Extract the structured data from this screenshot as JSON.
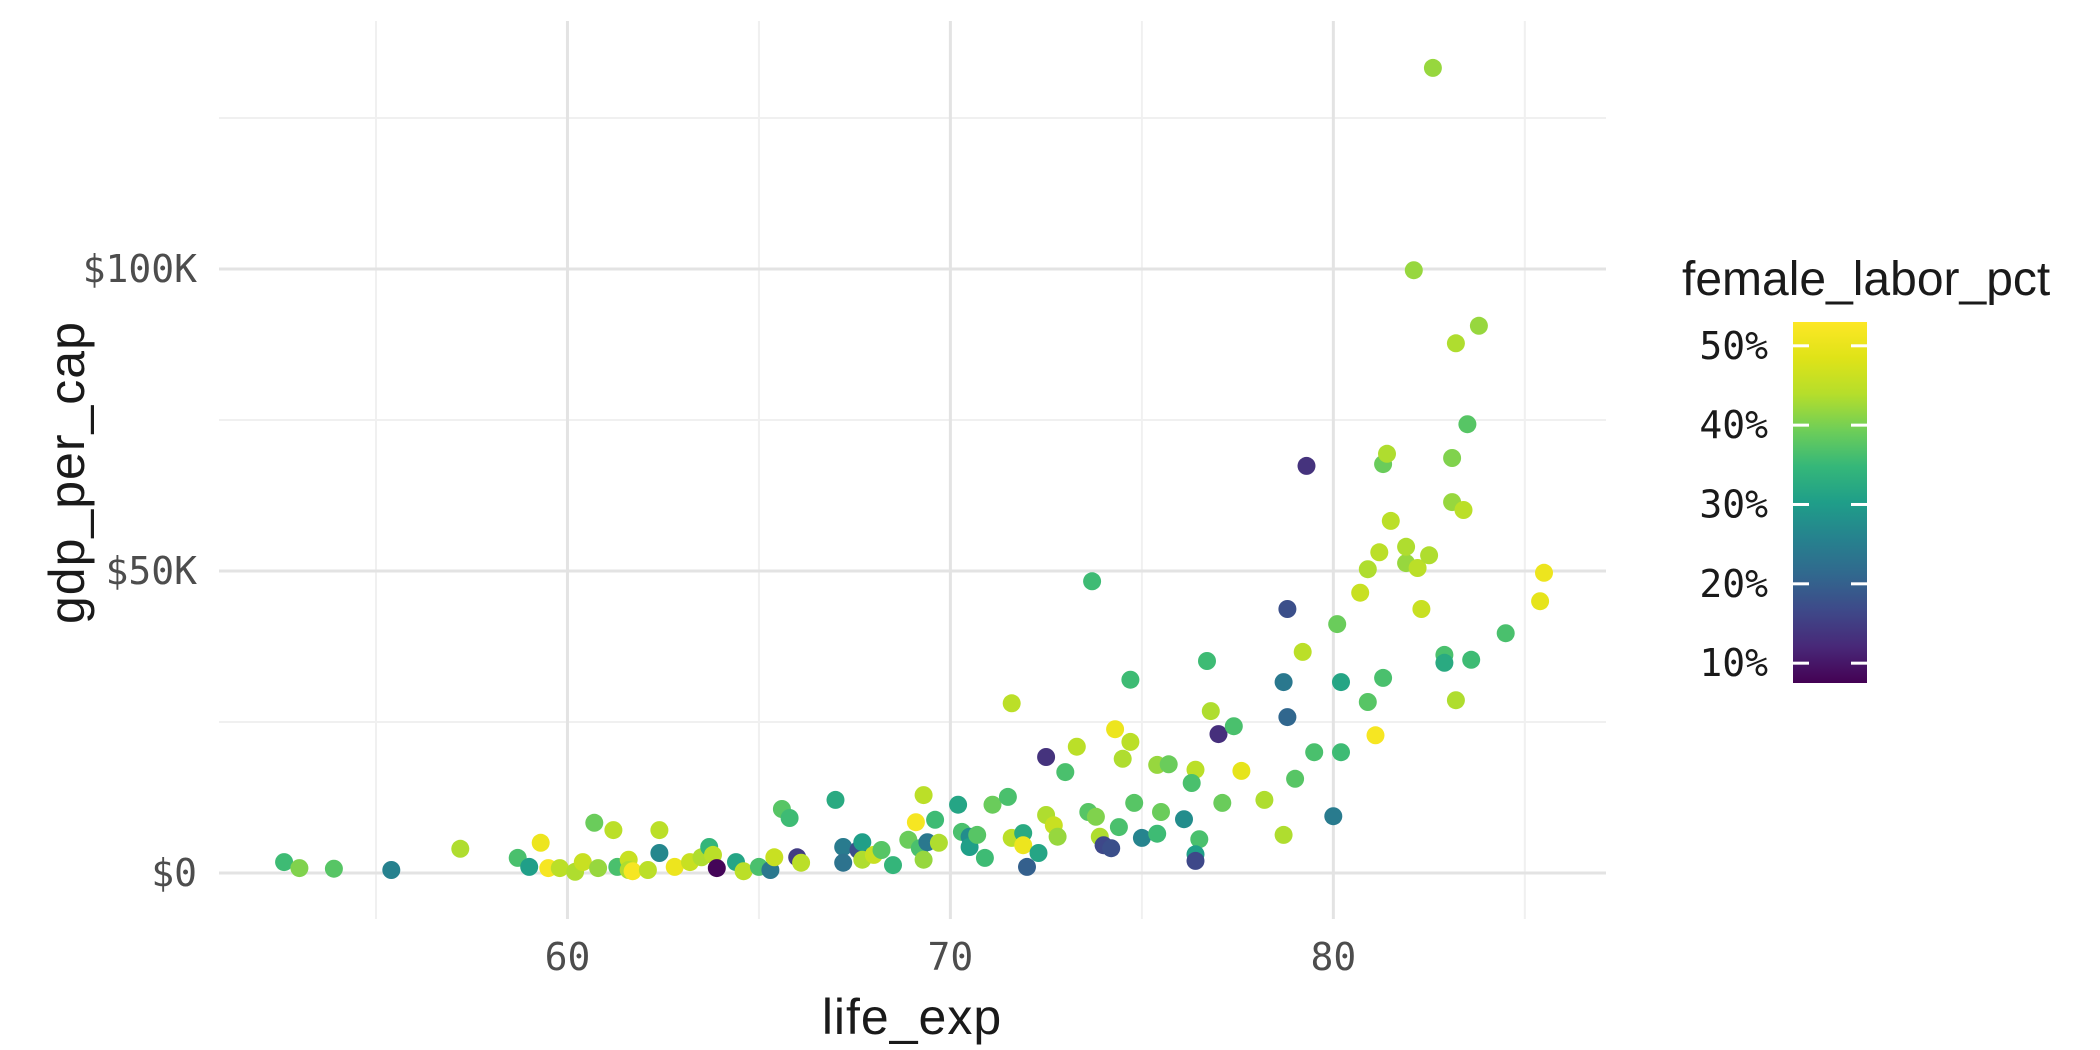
{
  "chart_data": {
    "type": "scatter",
    "title": "",
    "xlabel": "life_exp",
    "ylabel": "gdp_per_cap",
    "x_ticks": {
      "values": [
        60,
        70,
        80
      ],
      "labels": [
        "60",
        "70",
        "80"
      ]
    },
    "x_minor": [
      55,
      65,
      75,
      85
    ],
    "y_ticks": {
      "values": [
        0,
        50,
        100
      ],
      "labels": [
        "$0",
        "$50K",
        "$100K"
      ]
    },
    "y_minor": [
      25,
      75,
      125
    ],
    "xlim": [
      50.9,
      87.12
    ],
    "ylim_k": [
      -7.62,
      141.06
    ],
    "grid": "on",
    "legend": {
      "title": "female_labor_pct",
      "position": "right",
      "colormap": "viridis",
      "tick_labels": [
        "50%",
        "40%",
        "30%",
        "20%",
        "10%"
      ],
      "tick_values": [
        50,
        40,
        30,
        20,
        10
      ],
      "range_pct": [
        7.5,
        53
      ]
    },
    "points_fields": [
      "life_exp",
      "gdp_per_cap_thousands",
      "female_labor_pct"
    ],
    "points": [
      [
        52.6,
        1.8,
        35.5
      ],
      [
        53.0,
        0.8,
        40.5
      ],
      [
        53.9,
        0.7,
        37.5
      ],
      [
        55.4,
        0.5,
        25.5
      ],
      [
        57.2,
        4.0,
        43.5
      ],
      [
        58.7,
        2.5,
        36.5
      ],
      [
        59.0,
        1.0,
        30.5
      ],
      [
        59.3,
        5.0,
        50.5
      ],
      [
        59.5,
        0.8,
        52.0
      ],
      [
        59.8,
        0.8,
        44.5
      ],
      [
        60.2,
        0.2,
        43.5
      ],
      [
        60.4,
        1.8,
        46.0
      ],
      [
        60.7,
        8.3,
        39.0
      ],
      [
        60.8,
        0.8,
        42.0
      ],
      [
        61.2,
        7.1,
        44.5
      ],
      [
        61.3,
        1.0,
        36.5
      ],
      [
        61.6,
        2.2,
        46.0
      ],
      [
        61.6,
        0.5,
        43.5
      ],
      [
        61.7,
        0.3,
        52.0
      ],
      [
        62.1,
        0.5,
        44.5
      ],
      [
        62.4,
        3.3,
        26.5
      ],
      [
        62.4,
        7.1,
        44.5
      ],
      [
        62.8,
        1.0,
        50.5
      ],
      [
        63.2,
        1.8,
        46.0
      ],
      [
        63.5,
        2.6,
        43.5
      ],
      [
        63.7,
        4.3,
        34.5
      ],
      [
        63.8,
        3.0,
        44.5
      ],
      [
        63.9,
        0.8,
        8.0
      ],
      [
        64.4,
        1.8,
        31.5
      ],
      [
        64.6,
        0.3,
        44.5
      ],
      [
        65.0,
        1.0,
        36.5
      ],
      [
        65.3,
        0.5,
        24.0
      ],
      [
        65.4,
        2.6,
        46.0
      ],
      [
        65.6,
        10.6,
        37.5
      ],
      [
        65.8,
        9.1,
        35.5
      ],
      [
        66.0,
        2.6,
        15.0
      ],
      [
        66.1,
        1.7,
        44.5
      ],
      [
        67.0,
        12.1,
        32.5
      ],
      [
        67.2,
        4.3,
        24.5
      ],
      [
        67.2,
        1.7,
        23.0
      ],
      [
        67.6,
        3.8,
        17.5
      ],
      [
        67.7,
        5.1,
        30.5
      ],
      [
        67.7,
        2.2,
        43.5
      ],
      [
        68.0,
        3.0,
        46.0
      ],
      [
        68.2,
        3.8,
        37.5
      ],
      [
        68.5,
        1.3,
        34.5
      ],
      [
        68.9,
        5.5,
        39.0
      ],
      [
        69.1,
        8.4,
        52.0
      ],
      [
        69.2,
        4.1,
        36.5
      ],
      [
        69.3,
        12.9,
        44.5
      ],
      [
        69.3,
        2.2,
        42.0
      ],
      [
        69.4,
        5.1,
        24.0
      ],
      [
        69.6,
        8.8,
        35.5
      ],
      [
        69.7,
        5.0,
        43.5
      ],
      [
        70.2,
        11.3,
        31.5
      ],
      [
        70.3,
        6.8,
        36.5
      ],
      [
        70.5,
        6.0,
        27.5
      ],
      [
        70.5,
        4.3,
        30.5
      ],
      [
        70.7,
        6.3,
        37.5
      ],
      [
        70.9,
        2.5,
        35.5
      ],
      [
        71.1,
        11.3,
        39.0
      ],
      [
        71.5,
        12.6,
        36.5
      ],
      [
        71.6,
        5.8,
        44.5
      ],
      [
        71.6,
        28.1,
        44.5
      ],
      [
        71.9,
        6.6,
        32.5
      ],
      [
        71.9,
        4.6,
        50.5
      ],
      [
        72.0,
        1.0,
        20.0
      ],
      [
        72.3,
        3.3,
        31.5
      ],
      [
        72.5,
        9.6,
        43.5
      ],
      [
        72.5,
        19.2,
        13.5
      ],
      [
        72.7,
        7.9,
        46.0
      ],
      [
        72.8,
        6.0,
        42.0
      ],
      [
        73.0,
        16.7,
        36.5
      ],
      [
        73.3,
        20.9,
        44.5
      ],
      [
        73.6,
        10.1,
        37.5
      ],
      [
        73.8,
        9.3,
        40.5
      ],
      [
        73.7,
        48.3,
        35.5
      ],
      [
        73.9,
        6.0,
        43.5
      ],
      [
        74.0,
        4.6,
        16.5
      ],
      [
        74.2,
        4.1,
        17.5
      ],
      [
        74.3,
        23.8,
        50.5
      ],
      [
        74.4,
        7.6,
        36.5
      ],
      [
        74.7,
        32.0,
        35.5
      ],
      [
        74.7,
        21.7,
        44.5
      ],
      [
        74.5,
        18.9,
        43.5
      ],
      [
        74.8,
        11.6,
        37.5
      ],
      [
        75.0,
        5.8,
        26.0
      ],
      [
        75.5,
        10.1,
        39.0
      ],
      [
        75.4,
        6.5,
        35.5
      ],
      [
        75.4,
        17.9,
        42.0
      ],
      [
        75.7,
        18.0,
        39.0
      ],
      [
        76.1,
        8.9,
        27.5
      ],
      [
        76.5,
        5.6,
        36.5
      ],
      [
        76.4,
        3.1,
        30.5
      ],
      [
        76.4,
        2.0,
        16.5
      ],
      [
        76.4,
        17.1,
        44.5
      ],
      [
        76.3,
        14.9,
        36.5
      ],
      [
        76.7,
        35.1,
        35.5
      ],
      [
        76.8,
        26.8,
        43.5
      ],
      [
        77.0,
        23.0,
        13.0
      ],
      [
        77.1,
        11.6,
        39.0
      ],
      [
        77.4,
        24.3,
        36.5
      ],
      [
        77.6,
        16.9,
        49.5
      ],
      [
        78.2,
        12.1,
        43.5
      ],
      [
        78.7,
        6.3,
        43.5
      ],
      [
        78.8,
        43.7,
        17.5
      ],
      [
        78.7,
        31.6,
        24.0
      ],
      [
        78.8,
        25.8,
        21.0
      ],
      [
        79.0,
        15.6,
        37.5
      ],
      [
        79.2,
        36.6,
        44.5
      ],
      [
        79.3,
        67.4,
        13.5
      ],
      [
        79.5,
        20.0,
        36.5
      ],
      [
        80.0,
        9.4,
        24.5
      ],
      [
        80.1,
        41.2,
        39.0
      ],
      [
        80.2,
        20.0,
        35.5
      ],
      [
        80.2,
        31.6,
        31.5
      ],
      [
        80.7,
        46.4,
        46.0
      ],
      [
        80.9,
        50.3,
        43.5
      ],
      [
        80.9,
        28.3,
        37.5
      ],
      [
        81.1,
        22.8,
        52.0
      ],
      [
        81.2,
        53.1,
        44.5
      ],
      [
        81.3,
        32.3,
        36.5
      ],
      [
        81.3,
        67.7,
        39.0
      ],
      [
        81.4,
        69.4,
        43.5
      ],
      [
        81.5,
        58.3,
        44.5
      ],
      [
        81.9,
        51.3,
        42.0
      ],
      [
        81.9,
        54.0,
        43.5
      ],
      [
        82.1,
        99.8,
        42.0
      ],
      [
        82.2,
        50.5,
        44.5
      ],
      [
        82.3,
        43.7,
        46.0
      ],
      [
        82.5,
        52.6,
        43.5
      ],
      [
        82.6,
        133.3,
        42.0
      ],
      [
        82.9,
        36.1,
        36.5
      ],
      [
        82.9,
        34.8,
        32.5
      ],
      [
        83.1,
        68.7,
        40.5
      ],
      [
        83.1,
        61.4,
        42.0
      ],
      [
        83.2,
        28.6,
        43.5
      ],
      [
        83.2,
        87.7,
        43.5
      ],
      [
        83.4,
        60.1,
        44.5
      ],
      [
        83.5,
        74.3,
        37.5
      ],
      [
        83.6,
        35.3,
        35.5
      ],
      [
        83.8,
        90.6,
        42.0
      ],
      [
        84.5,
        39.7,
        36.5
      ],
      [
        85.4,
        45.0,
        49.5
      ],
      [
        85.5,
        49.7,
        50.5
      ]
    ]
  },
  "style_colors": {
    "background": "#ffffff",
    "grid_major": "#e3e3e3",
    "grid_minor": "#f0f0f0",
    "tick_label": "#4d4d4d",
    "legend_label": "#1a1a1a",
    "axis_title": "#1a1a1a",
    "legend_tick": "#ffffff",
    "viridis_stops": [
      "#440154",
      "#482878",
      "#3e4989",
      "#31688e",
      "#26828e",
      "#1f9e89",
      "#35b779",
      "#6ece58",
      "#b5de2b",
      "#dfe318",
      "#fde725"
    ]
  }
}
